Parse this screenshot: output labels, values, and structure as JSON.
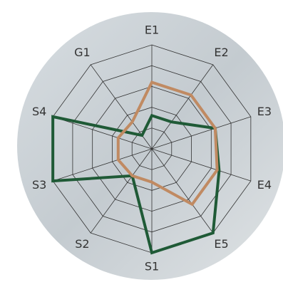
{
  "chart_data": {
    "type": "radar",
    "categories": [
      "E1",
      "E2",
      "E3",
      "E4",
      "E5",
      "S1",
      "S2",
      "S3",
      "S4",
      "G1"
    ],
    "series": [
      {
        "color": "#1f5a36",
        "values": [
          1.6,
          1.6,
          3.2,
          3.4,
          5,
          5,
          1.6,
          5,
          5,
          0.8
        ]
      },
      {
        "color": "#c08a62",
        "values": [
          3.2,
          3.2,
          3.2,
          3.3,
          3.3,
          1.6,
          1.6,
          1.7,
          1.7,
          1.6
        ]
      }
    ],
    "ylim": [
      0,
      5
    ],
    "yticks": [
      1,
      2,
      3,
      4,
      5
    ],
    "grid": true
  }
}
